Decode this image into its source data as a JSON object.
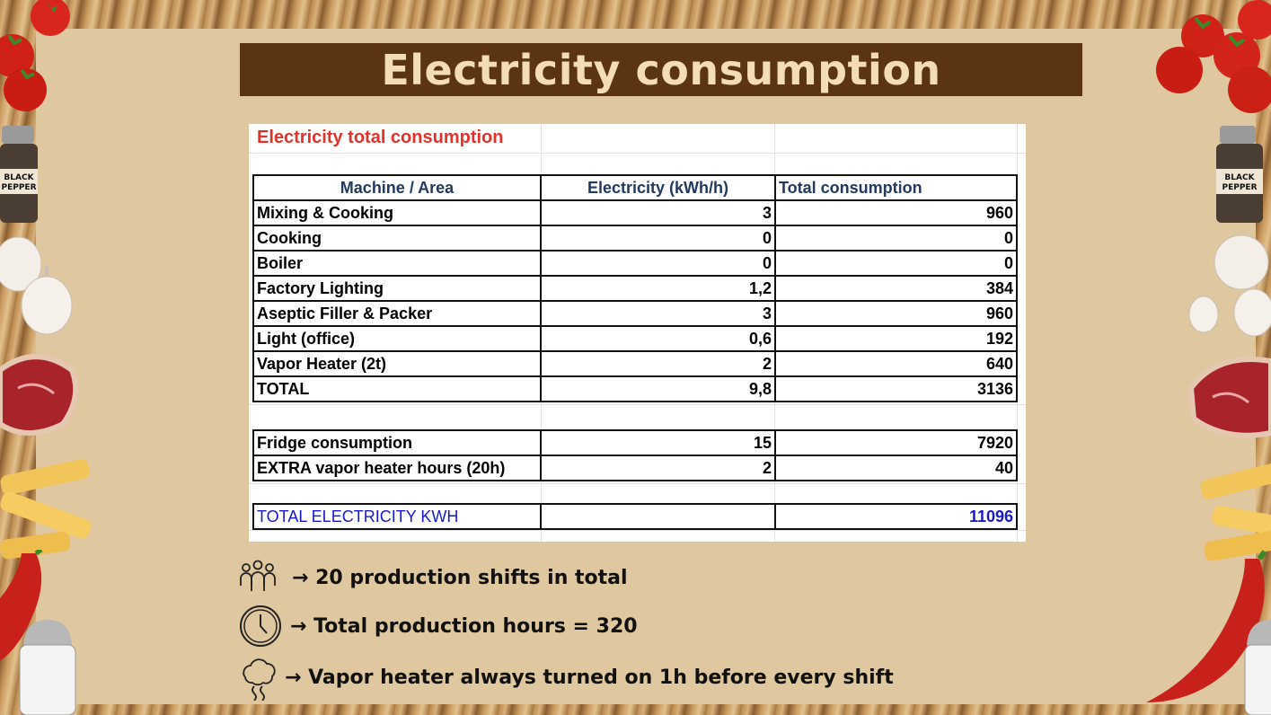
{
  "slide": {
    "title": "Electricity consumption"
  },
  "sheet": {
    "title": "Electricity total consumption",
    "columns": [
      "Machine / Area",
      "Electricity (kWh/h)",
      "Total consumption"
    ],
    "rows": [
      {
        "area": "Mixing & Cooking",
        "kwh": "3",
        "total": "960"
      },
      {
        "area": "Cooking",
        "kwh": "0",
        "total": "0"
      },
      {
        "area": "Boiler",
        "kwh": "0",
        "total": "0"
      },
      {
        "area": "Factory Lighting",
        "kwh": "1,2",
        "total": "384"
      },
      {
        "area": "Aseptic Filler & Packer",
        "kwh": "3",
        "total": "960"
      },
      {
        "area": "Light (office)",
        "kwh": "0,6",
        "total": "192"
      },
      {
        "area": "Vapor Heater (2t)",
        "kwh": "2",
        "total": "640"
      }
    ],
    "total_row": {
      "area": "TOTAL",
      "kwh": "9,8",
      "total": "3136"
    },
    "extra_rows": [
      {
        "area": "Fridge consumption",
        "kwh": "15",
        "total": "7920"
      },
      {
        "area": "EXTRA vapor heater hours (20h)",
        "kwh": "2",
        "total": "40"
      }
    ],
    "grand_total": {
      "label": "TOTAL ELECTRICITY KWH",
      "total": "11096"
    }
  },
  "bullets": [
    {
      "icon": "people-group-icon",
      "text": "→ 20 production shifts in total"
    },
    {
      "icon": "clock-icon",
      "text": "→ Total production hours = 320"
    },
    {
      "icon": "steam-icon",
      "text": "→ Vapor heater always turned on 1h before every shift"
    }
  ],
  "decorations": [
    "tomato-icon",
    "black-pepper-shaker-icon",
    "garlic-icon",
    "steak-icon",
    "penne-pasta-icon",
    "chili-pepper-icon",
    "salt-shaker-icon"
  ],
  "pepper_label": "BLACK PEPPER",
  "colors": {
    "title_bar": "#5b3412",
    "title_text": "#f2ddb4",
    "panel": "#dfc79f",
    "sheet_title": "#e3312c",
    "header_text": "#223a5e",
    "grand_total_text": "#1a1acd"
  }
}
